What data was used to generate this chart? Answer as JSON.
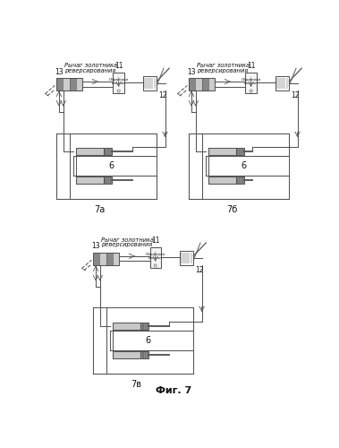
{
  "title": "Фиг. 7",
  "bg": "#ffffff",
  "lc": "#555555",
  "tc": "#111111",
  "lw": 0.75,
  "diagrams_top": [
    {
      "label": "7а",
      "ox": 2,
      "oy": 5
    },
    {
      "label": "7б",
      "ox": 193,
      "oy": 5
    }
  ],
  "diagram_bot": {
    "label": "7в",
    "ox": 55,
    "oy": 258
  }
}
